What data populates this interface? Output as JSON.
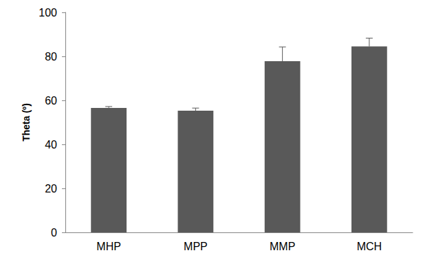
{
  "chart_data": {
    "type": "bar",
    "y_label": "Theta (º)",
    "categories": [
      "MHP",
      "MPP",
      "MMP",
      "MCH"
    ],
    "values": [
      56.6,
      55.3,
      77.8,
      84.5
    ],
    "errors": [
      0.6,
      1.2,
      6.5,
      3.8
    ],
    "color": "#595959",
    "ylim": [
      0,
      100
    ],
    "yticks": [
      0,
      20,
      40,
      60,
      80,
      100
    ],
    "grid": false
  }
}
